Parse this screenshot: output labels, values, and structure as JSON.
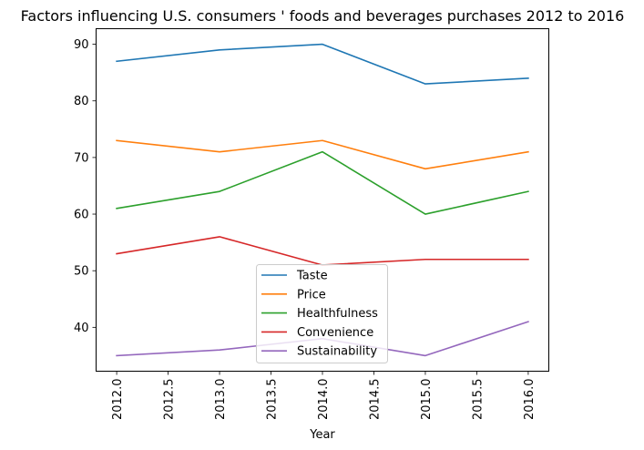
{
  "chart_data": {
    "type": "line",
    "title": "Factors influencing U.S. consumers ' foods and beverages purchases 2012 to 2016",
    "xlabel": "Year",
    "ylabel": "",
    "x": [
      2012,
      2013,
      2014,
      2015,
      2016
    ],
    "xlim": [
      2011.8,
      2016.2
    ],
    "ylim": [
      32.25,
      92.75
    ],
    "xticks": [
      "2012.0",
      "2012.5",
      "2013.0",
      "2013.5",
      "2014.0",
      "2014.5",
      "2015.0",
      "2015.5",
      "2016.0"
    ],
    "yticks": [
      40,
      50,
      60,
      70,
      80,
      90
    ],
    "grid": false,
    "legend_position": "lower center",
    "series": [
      {
        "name": "Taste",
        "color": "#1f77b4",
        "values": [
          87,
          89,
          90,
          83,
          84
        ]
      },
      {
        "name": "Price",
        "color": "#ff7f0e",
        "values": [
          73,
          71,
          73,
          68,
          71
        ]
      },
      {
        "name": "Healthfulness",
        "color": "#2ca02c",
        "values": [
          61,
          64,
          71,
          60,
          64
        ]
      },
      {
        "name": "Convenience",
        "color": "#d62728",
        "values": [
          53,
          56,
          51,
          52,
          52
        ]
      },
      {
        "name": "Sustainability",
        "color": "#9467bd",
        "values": [
          35,
          36,
          38,
          35,
          41
        ]
      }
    ]
  }
}
